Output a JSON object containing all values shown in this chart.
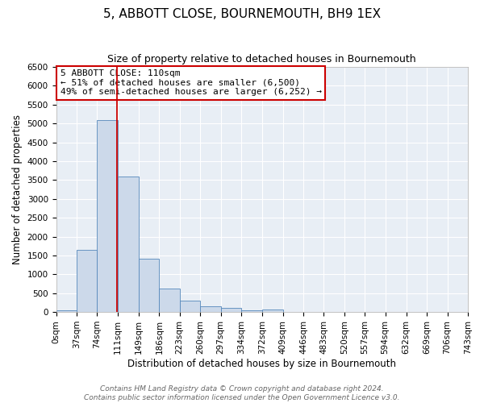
{
  "title": "5, ABBOTT CLOSE, BOURNEMOUTH, BH9 1EX",
  "subtitle": "Size of property relative to detached houses in Bournemouth",
  "xlabel": "Distribution of detached houses by size in Bournemouth",
  "ylabel": "Number of detached properties",
  "bin_edges": [
    0,
    37,
    74,
    111,
    149,
    186,
    223,
    260,
    297,
    334,
    372,
    409,
    446,
    483,
    520,
    557,
    594,
    632,
    669,
    706,
    743
  ],
  "bin_counts": [
    50,
    1650,
    5080,
    3600,
    1420,
    620,
    300,
    150,
    110,
    50,
    60,
    10,
    5,
    0,
    0,
    0,
    0,
    0,
    0,
    0
  ],
  "bar_color": "#ccd9ea",
  "bar_edgecolor": "#5588bb",
  "property_line_x": 110,
  "property_line_color": "#cc0000",
  "annotation_title": "5 ABBOTT CLOSE: 110sqm",
  "annotation_line1": "← 51% of detached houses are smaller (6,500)",
  "annotation_line2": "49% of semi-detached houses are larger (6,252) →",
  "annotation_box_edgecolor": "#cc0000",
  "annotation_box_facecolor": "#ffffff",
  "ylim": [
    0,
    6500
  ],
  "yticks": [
    0,
    500,
    1000,
    1500,
    2000,
    2500,
    3000,
    3500,
    4000,
    4500,
    5000,
    5500,
    6000,
    6500
  ],
  "xtick_labels": [
    "0sqm",
    "37sqm",
    "74sqm",
    "111sqm",
    "149sqm",
    "186sqm",
    "223sqm",
    "260sqm",
    "297sqm",
    "334sqm",
    "372sqm",
    "409sqm",
    "446sqm",
    "483sqm",
    "520sqm",
    "557sqm",
    "594sqm",
    "632sqm",
    "669sqm",
    "706sqm",
    "743sqm"
  ],
  "footer_line1": "Contains HM Land Registry data © Crown copyright and database right 2024.",
  "footer_line2": "Contains public sector information licensed under the Open Government Licence v3.0.",
  "bg_color": "#ffffff",
  "plot_bg_color": "#e8eef5",
  "grid_color": "#ffffff",
  "title_fontsize": 11,
  "subtitle_fontsize": 9,
  "axis_label_fontsize": 8.5,
  "tick_fontsize": 7.5,
  "footer_fontsize": 6.5,
  "annotation_fontsize": 8
}
